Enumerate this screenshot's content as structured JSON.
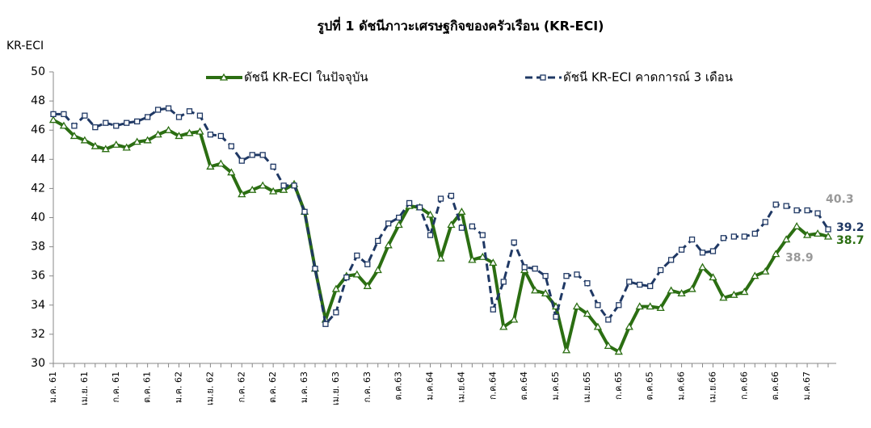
{
  "chart_data": {
    "type": "line",
    "title": "รูปที่ 1 ดัชนีภาวะเศรษฐกิจของครัวเรือน (KR-ECI)",
    "y_label": "KR-ECI",
    "categories": [
      "ม.ค. 61",
      null,
      null,
      "เม.ย. 61",
      null,
      null,
      "ก.ค. 61",
      null,
      null,
      "ต.ค. 61",
      null,
      null,
      "ม.ค. 62",
      null,
      null,
      "เม.ย. 62",
      null,
      null,
      "ก.ค. 62",
      null,
      null,
      "ต.ค. 62",
      null,
      null,
      "ม.ค. 63",
      null,
      null,
      "เม.ย. 63",
      null,
      null,
      "ก.ค. 63",
      null,
      null,
      "ต.ค.63",
      null,
      null,
      "ม.ค.64",
      null,
      null,
      "เม.ย.64",
      null,
      null,
      "ก.ค.64",
      null,
      null,
      "ต.ค.64",
      null,
      null,
      "ม.ค.65",
      null,
      null,
      "เม.ย.65",
      null,
      null,
      "ก.ค.65",
      null,
      null,
      "ต.ค.65",
      null,
      null,
      "ม.ค.66",
      null,
      null,
      "เม.ย.66",
      null,
      null,
      "ก.ค.66",
      null,
      null,
      "ต.ค.66",
      null,
      null,
      "ม.ค.67",
      null,
      null
    ],
    "series": [
      {
        "name": "ดัชนี KR-ECI ในปัจจุบัน",
        "color": "#2b6e12",
        "marker": "triangle",
        "dash": false,
        "values": [
          46.7,
          46.3,
          45.6,
          45.3,
          44.9,
          44.7,
          45.0,
          44.8,
          45.2,
          45.3,
          45.7,
          46.0,
          45.6,
          45.8,
          45.9,
          43.5,
          43.7,
          43.1,
          41.6,
          41.9,
          42.2,
          41.8,
          41.9,
          42.3,
          40.4,
          36.5,
          33.0,
          35.1,
          36.0,
          36.1,
          35.3,
          36.4,
          38.1,
          39.5,
          40.8,
          40.7,
          40.2,
          37.2,
          39.5,
          40.4,
          37.1,
          37.3,
          36.9,
          32.5,
          33.0,
          36.4,
          35.0,
          34.8,
          33.9,
          30.9,
          33.9,
          33.4,
          32.5,
          31.2,
          30.8,
          32.5,
          33.9,
          33.9,
          33.8,
          35.0,
          34.8,
          35.1,
          36.6,
          35.9,
          34.5,
          34.7,
          34.9,
          36.0,
          36.3,
          37.5,
          38.5,
          39.4,
          38.8,
          38.9,
          38.7
        ],
        "value_labels": [
          null,
          null,
          null,
          null,
          null,
          null,
          null,
          null,
          null,
          null,
          null,
          null,
          null,
          null,
          null,
          null,
          null,
          null,
          null,
          null,
          null,
          null,
          null,
          null,
          null,
          null,
          null,
          null,
          null,
          null,
          null,
          null,
          null,
          null,
          null,
          null,
          null,
          null,
          null,
          null,
          null,
          null,
          null,
          null,
          null,
          null,
          null,
          null,
          null,
          null,
          null,
          null,
          null,
          null,
          null,
          null,
          null,
          null,
          null,
          null,
          null,
          null,
          null,
          null,
          null,
          null,
          null,
          null,
          null,
          null,
          null,
          null,
          null,
          "38.9",
          "38.7"
        ]
      },
      {
        "name": "ดัชนี KR-ECI คาดการณ์ 3 เดือน",
        "color": "#1f3864",
        "marker": "square",
        "dash": true,
        "values": [
          47.1,
          47.1,
          46.3,
          47.0,
          46.2,
          46.5,
          46.3,
          46.5,
          46.6,
          46.9,
          47.4,
          47.5,
          46.9,
          47.3,
          47.0,
          45.7,
          45.6,
          44.9,
          43.9,
          44.3,
          44.3,
          43.5,
          42.2,
          42.2,
          40.4,
          36.5,
          32.7,
          33.5,
          35.9,
          37.4,
          36.8,
          38.4,
          39.6,
          40.0,
          41.0,
          40.7,
          38.8,
          41.3,
          41.5,
          39.3,
          39.4,
          38.8,
          33.7,
          35.6,
          38.3,
          36.6,
          36.5,
          36.0,
          33.2,
          36.0,
          36.1,
          35.5,
          34.0,
          33.0,
          34.0,
          35.6,
          35.4,
          35.3,
          36.4,
          37.1,
          37.8,
          38.5,
          37.6,
          37.7,
          38.6,
          38.7,
          38.7,
          38.9,
          39.7,
          40.9,
          40.8,
          40.5,
          40.5,
          40.3,
          39.2
        ],
        "value_labels": [
          null,
          null,
          null,
          null,
          null,
          null,
          null,
          null,
          null,
          null,
          null,
          null,
          null,
          null,
          null,
          null,
          null,
          null,
          null,
          null,
          null,
          null,
          null,
          null,
          null,
          null,
          null,
          null,
          null,
          null,
          null,
          null,
          null,
          null,
          null,
          null,
          null,
          null,
          null,
          null,
          null,
          null,
          null,
          null,
          null,
          null,
          null,
          null,
          null,
          null,
          null,
          null,
          null,
          null,
          null,
          null,
          null,
          null,
          null,
          null,
          null,
          null,
          null,
          null,
          null,
          null,
          null,
          null,
          null,
          null,
          null,
          null,
          null,
          "40.3",
          "39.2"
        ]
      }
    ],
    "ylim": [
      30,
      50
    ],
    "yticks": [
      30,
      32,
      34,
      36,
      38,
      40,
      42,
      44,
      46,
      48,
      50
    ],
    "grid": false,
    "legend": "top"
  }
}
